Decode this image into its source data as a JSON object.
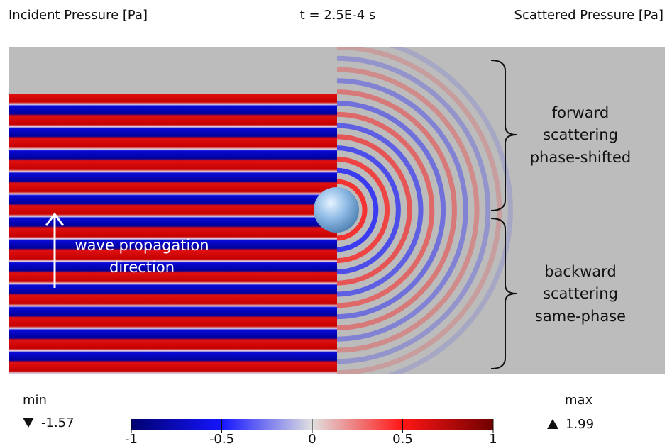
{
  "header": {
    "left": "Incident Pressure [Pa]",
    "center": "t = 2.5E-4 s",
    "right": "Scattered Pressure [Pa]"
  },
  "annotations": {
    "forward": [
      "forward",
      "scattering",
      "phase-shifted"
    ],
    "backward": [
      "backward",
      "scattering",
      "same-phase"
    ],
    "wave": [
      "wave propagation",
      "direction"
    ]
  },
  "colorbar": {
    "range": [
      -1,
      1
    ],
    "ticks": [
      -1,
      -0.5,
      0,
      0.5,
      1
    ]
  },
  "min": {
    "label": "min",
    "value": -1.57
  },
  "max": {
    "label": "max",
    "value": 1.99
  }
}
